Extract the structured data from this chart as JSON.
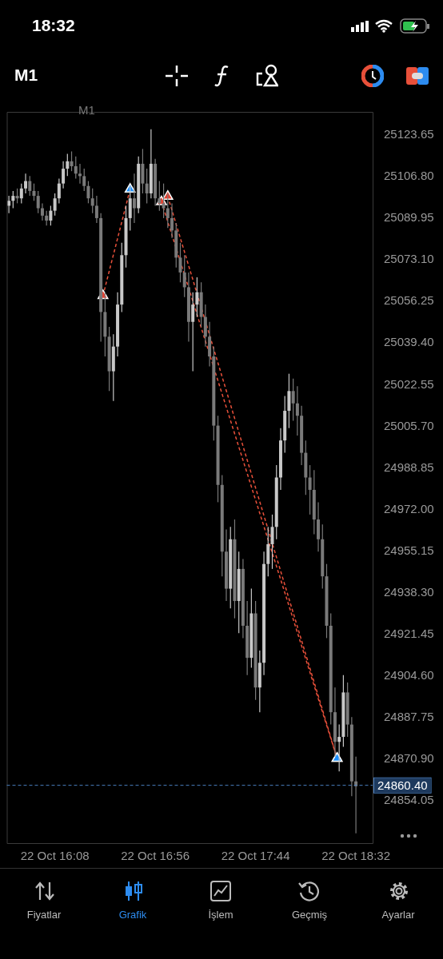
{
  "chart_data": {
    "type": "candlestick",
    "title": "M1",
    "annotations": [
      "18:32",
      "M1",
      "Fiyatlar",
      "Grafik",
      "İşlem",
      "Geçmiş",
      "Ayarlar"
    ],
    "colors": [
      "#c8c8c8",
      "#c8c8c8",
      "#7a7a7a",
      "#c8c8c8",
      "#c8c8c8",
      "#7a7a7a",
      "#7a7a7a",
      "#7a7a7a",
      "#7a7a7a",
      "#7a7a7a",
      "#c8c8c8",
      "#c8c8c8",
      "#c8c8c8",
      "#c8c8c8",
      "#c8c8c8",
      "#7a7a7a",
      "#7a7a7a",
      "#7a7a7a",
      "#7a7a7a",
      "#7a7a7a",
      "#7a7a7a",
      "#7a7a7a",
      "#7a7a7a",
      "#7a7a7a",
      "#7a7a7a",
      "#c8c8c8",
      "#c8c8c8",
      "#c8c8c8",
      "#c8c8c8",
      "#c8c8c8",
      "#7a7a7a",
      "#c8c8c8",
      "#7a7a7a",
      "#7a7a7a",
      "#c8c8c8",
      "#7a7a7a",
      "#7a7a7a",
      "#7a7a7a",
      "#7a7a7a",
      "#7a7a7a",
      "#7a7a7a",
      "#7a7a7a",
      "#7a7a7a",
      "#7a7a7a",
      "#c8c8c8",
      "#c8c8c8",
      "#7a7a7a",
      "#7a7a7a",
      "#7a7a7a",
      "#7a7a7a",
      "#7a7a7a",
      "#7a7a7a",
      "#7a7a7a",
      "#c8c8c8",
      "#7a7a7a",
      "#c8c8c8",
      "#7a7a7a",
      "#7a7a7a",
      "#c8c8c8",
      "#7a7a7a",
      "#c8c8c8",
      "#c8c8c8",
      "#c8c8c8",
      "#c8c8c8",
      "#c8c8c8",
      "#c8c8c8",
      "#c8c8c8",
      "#c8c8c8",
      "#7a7a7a",
      "#7a7a7a",
      "#7a7a7a",
      "#7a7a7a",
      "#7a7a7a",
      "#7a7a7a",
      "#7a7a7a",
      "#7a7a7a",
      "#7a7a7a",
      "#7a7a7a",
      "#7a7a7a",
      "#c8c8c8",
      "#c8c8c8",
      "#7a7a7a",
      "#7a7a7a",
      "#7a7a7a"
    ],
    "x": [
      "--10-22T15:46",
      "--10-22T15:48",
      "--10-22T15:50",
      "--10-22T15:52",
      "--10-22T15:54",
      "--10-22T15:56",
      "--10-22T15:58",
      "--10-22T16:00",
      "--10-22T16:02",
      "--10-22T16:04",
      "--10-22T16:06",
      "--10-22T16:08",
      "--10-22T16:10",
      "--10-22T16:12",
      "--10-22T16:14",
      "--10-22T16:16",
      "--10-22T16:18",
      "--10-22T16:20",
      "--10-22T16:22",
      "--10-22T16:24",
      "--10-22T16:26",
      "--10-22T16:28",
      "--10-22T16:30",
      "--10-22T16:32",
      "--10-22T16:34",
      "--10-22T16:36",
      "--10-22T16:38",
      "--10-22T16:40",
      "--10-22T16:42",
      "--10-22T16:44",
      "--10-22T16:46",
      "--10-22T16:48",
      "--10-22T16:50",
      "--10-22T16:52",
      "--10-22T16:54",
      "--10-22T16:56",
      "--10-22T16:58",
      "--10-22T17:00",
      "--10-22T17:02",
      "--10-22T17:04",
      "--10-22T17:06",
      "--10-22T17:08",
      "--10-22T17:10",
      "--10-22T17:12",
      "--10-22T17:14",
      "--10-22T17:16",
      "--10-22T17:18",
      "--10-22T17:20",
      "--10-22T17:22",
      "--10-22T17:24",
      "--10-22T17:26",
      "--10-22T17:28",
      "--10-22T17:30",
      "--10-22T17:32",
      "--10-22T17:34",
      "--10-22T17:36",
      "--10-22T17:38",
      "--10-22T17:40",
      "--10-22T17:42",
      "--10-22T17:44",
      "--10-22T17:46",
      "--10-22T17:48",
      "--10-22T17:50",
      "--10-22T17:52",
      "--10-22T17:54",
      "--10-22T17:56",
      "--10-22T17:58",
      "--10-22T18:00",
      "--10-22T18:02",
      "--10-22T18:04",
      "--10-22T18:06",
      "--10-22T18:08",
      "--10-22T18:10",
      "--10-22T18:12",
      "--10-22T18:14",
      "--10-22T18:16",
      "--10-22T18:18",
      "--10-22T18:20",
      "--10-22T18:22",
      "--10-22T18:24",
      "--10-22T18:26",
      "--10-22T18:28",
      "--10-22T18:30",
      "--10-22T18:32"
    ],
    "ohlc": [
      [
        25095,
        25099,
        25092,
        25097
      ],
      [
        25097,
        25101,
        25094,
        25099
      ],
      [
        25099,
        25102,
        25096,
        25098
      ],
      [
        25098,
        25104,
        25096,
        25102
      ],
      [
        25102,
        25108,
        25100,
        25105
      ],
      [
        25105,
        25107,
        25099,
        25101
      ],
      [
        25101,
        25104,
        25097,
        25099
      ],
      [
        25099,
        25101,
        25092,
        25094
      ],
      [
        25094,
        25096,
        25089,
        25091
      ],
      [
        25091,
        25093,
        25087,
        25089
      ],
      [
        25089,
        25095,
        25087,
        25093
      ],
      [
        25093,
        25100,
        25091,
        25098
      ],
      [
        25098,
        25106,
        25096,
        25104
      ],
      [
        25104,
        25113,
        25102,
        25110
      ],
      [
        25110,
        25116,
        25107,
        25113
      ],
      [
        25113,
        25117,
        25109,
        25111
      ],
      [
        25111,
        25115,
        25106,
        25108
      ],
      [
        25108,
        25112,
        25104,
        25107
      ],
      [
        25107,
        25110,
        25101,
        25103
      ],
      [
        25103,
        25105,
        25096,
        25098
      ],
      [
        25098,
        25102,
        25092,
        25095
      ],
      [
        25095,
        25099,
        25088,
        25090
      ],
      [
        25090,
        25092,
        25040,
        25052
      ],
      [
        25052,
        25060,
        25034,
        25042
      ],
      [
        25042,
        25046,
        25020,
        25028
      ],
      [
        25028,
        25043,
        25016,
        25038
      ],
      [
        25038,
        25060,
        25034,
        25055
      ],
      [
        25055,
        25080,
        25052,
        25075
      ],
      [
        25075,
        25095,
        25070,
        25090
      ],
      [
        25090,
        25103,
        25085,
        25098
      ],
      [
        25098,
        25108,
        25088,
        25094
      ],
      [
        25094,
        25115,
        25092,
        25112
      ],
      [
        25112,
        25118,
        25100,
        25104
      ],
      [
        25104,
        25110,
        25096,
        25100
      ],
      [
        25100,
        25126,
        25098,
        25112
      ],
      [
        25112,
        25114,
        25095,
        25098
      ],
      [
        25098,
        25105,
        25093,
        25096
      ],
      [
        25096,
        25104,
        25090,
        25094
      ],
      [
        25094,
        25100,
        25086,
        25090
      ],
      [
        25090,
        25096,
        25082,
        25085
      ],
      [
        25085,
        25088,
        25070,
        25074
      ],
      [
        25074,
        25080,
        25064,
        25068
      ],
      [
        25068,
        25075,
        25058,
        25062
      ],
      [
        25062,
        25068,
        25040,
        25048
      ],
      [
        25048,
        25060,
        25028,
        25055
      ],
      [
        25055,
        25066,
        25050,
        25060
      ],
      [
        25060,
        25064,
        25046,
        25050
      ],
      [
        25050,
        25055,
        25038,
        25042
      ],
      [
        25042,
        25048,
        25030,
        25034
      ],
      [
        25034,
        25038,
        25000,
        25006
      ],
      [
        25006,
        25010,
        24975,
        24982
      ],
      [
        24982,
        24986,
        24945,
        24955
      ],
      [
        24955,
        24964,
        24935,
        24940
      ],
      [
        24940,
        24965,
        24932,
        24960
      ],
      [
        24960,
        24968,
        24928,
        24935
      ],
      [
        24935,
        24955,
        24922,
        24948
      ],
      [
        24948,
        24952,
        24920,
        24925
      ],
      [
        24925,
        24935,
        24905,
        24912
      ],
      [
        24912,
        24940,
        24908,
        24930
      ],
      [
        24930,
        24935,
        24895,
        24900
      ],
      [
        24900,
        24915,
        24890,
        24910
      ],
      [
        24910,
        24955,
        24905,
        24950
      ],
      [
        24950,
        24965,
        24945,
        24958
      ],
      [
        24958,
        24970,
        24948,
        24965
      ],
      [
        24965,
        24990,
        24960,
        24985
      ],
      [
        24985,
        25005,
        24980,
        25000
      ],
      [
        25000,
        25018,
        24995,
        25012
      ],
      [
        25012,
        25027,
        25005,
        25020
      ],
      [
        25020,
        25025,
        25008,
        25015
      ],
      [
        25015,
        25022,
        25002,
        25010
      ],
      [
        25010,
        25014,
        24990,
        24995
      ],
      [
        24995,
        25000,
        24978,
        24985
      ],
      [
        24985,
        24990,
        24970,
        24980
      ],
      [
        24980,
        24988,
        24962,
        24968
      ],
      [
        24968,
        24975,
        24955,
        24960
      ],
      [
        24960,
        24966,
        24940,
        24945
      ],
      [
        24945,
        24950,
        24920,
        24925
      ],
      [
        24925,
        24930,
        24885,
        24890
      ],
      [
        24890,
        24900,
        24872,
        24878
      ],
      [
        24878,
        24885,
        24866,
        24880
      ],
      [
        24880,
        24905,
        24876,
        24898
      ],
      [
        24898,
        24902,
        24880,
        24885
      ],
      [
        24885,
        24888,
        24856,
        24862
      ],
      [
        24862,
        24872,
        24841,
        24860
      ]
    ],
    "series": [
      {
        "type": "line",
        "color": "#e8503a",
        "x": [
          "--10-22T16:31",
          "--10-22T16:44"
        ],
        "values": [
          25058.6,
          25101.7
        ],
        "colors": [
          "#e8402f",
          "#1e8fff"
        ]
      },
      {
        "type": "line",
        "color": "#e8503a",
        "x": [
          "--10-22T16:59",
          "--10-22T18:23"
        ],
        "values": [
          25096.6,
          24871.3
        ],
        "colors": [
          "#e8402f",
          "#1e8fff"
        ]
      },
      {
        "type": "line",
        "color": "#e8503a",
        "x": [
          "--10-22T17:02",
          "--10-22T18:23"
        ],
        "values": [
          25098.8,
          24871.3
        ],
        "colors": [
          "#e8402f",
          "#1e8fff"
        ]
      }
    ],
    "marker": "triangle",
    "line_style": "dashed",
    "xlim": [
      "--10-22T15:45",
      "--10-22T18:40"
    ],
    "xticks": [
      {
        "value": "--10-22T16:08",
        "label": "22 Oct 16:08"
      },
      {
        "value": "--10-22T16:56",
        "label": "22 Oct 16:56"
      },
      {
        "value": "--10-22T17:44",
        "label": "22 Oct 17:44"
      },
      {
        "value": "--10-22T18:32",
        "label": "22 Oct 18:32"
      }
    ],
    "ylim": [
      24837,
      25133
    ],
    "yticks": [
      {
        "value": 25123.65,
        "label": "25123.65"
      },
      {
        "value": 25106.8,
        "label": "25106.80"
      },
      {
        "value": 25089.95,
        "label": "25089.95"
      },
      {
        "value": 25073.1,
        "label": "25073.10"
      },
      {
        "value": 25056.25,
        "label": "25056.25"
      },
      {
        "value": 25039.4,
        "label": "25039.40"
      },
      {
        "value": 25022.55,
        "label": "25022.55"
      },
      {
        "value": 25005.7,
        "label": "25005.70"
      },
      {
        "value": 24988.85,
        "label": "24988.85"
      },
      {
        "value": 24972,
        "label": "24972.00"
      },
      {
        "value": 24955.15,
        "label": "24955.15"
      },
      {
        "value": 24938.3,
        "label": "24938.30"
      },
      {
        "value": 24921.45,
        "label": "24921.45"
      },
      {
        "value": 24904.6,
        "label": "24904.60"
      },
      {
        "value": 24887.75,
        "label": "24887.75"
      },
      {
        "value": 24870.9,
        "label": "24870.90"
      },
      {
        "value": 24854.05,
        "label": "24854.05"
      }
    ],
    "ref_lines": [
      {
        "axis": "y",
        "value": 24860.4,
        "label": "24860.40",
        "color": "#4a7fc0",
        "line_style": "dashed"
      }
    ],
    "grid": false,
    "legend": false
  }
}
